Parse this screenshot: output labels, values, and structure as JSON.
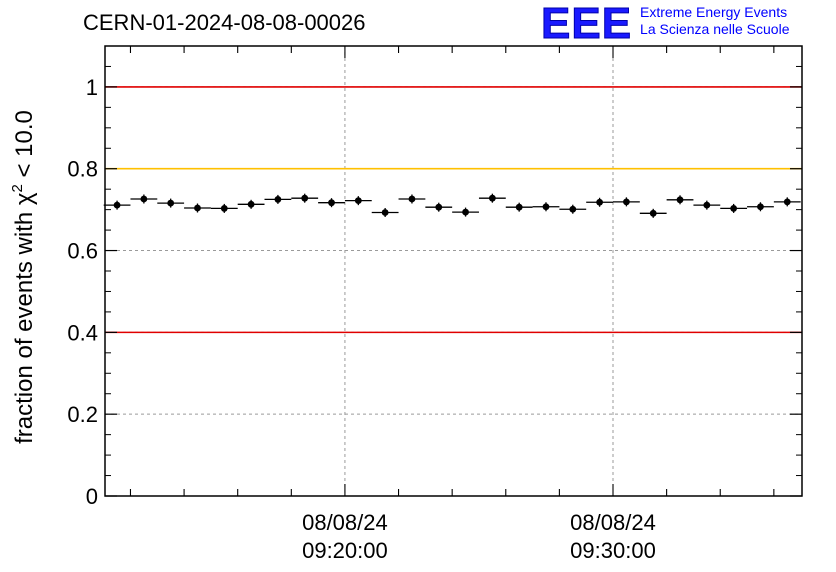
{
  "header": {
    "title": "CERN-01-2024-08-08-00026",
    "logo": {
      "mark": "EEE",
      "line1": "Extreme Energy Events",
      "line2": "La Scienza nelle Scuole",
      "color": "#0000ff"
    }
  },
  "chart_data": {
    "type": "scatter",
    "title": "CERN-01-2024-08-08-00026",
    "ylabel": "fraction of events with χ² < 10.0",
    "ylabel_parts": {
      "prefix": "fraction of events with ",
      "symbol": "χ",
      "sup": "2",
      "suffix": " < 10.0"
    },
    "xlabel": "",
    "x_unit": "minutes after 08/08/24 09:00:00",
    "xlim": [
      11.05,
      37.05
    ],
    "ylim": [
      0,
      1.1
    ],
    "yticks": [
      0,
      0.2,
      0.4,
      0.6,
      0.8,
      1
    ],
    "ytick_labels": [
      "0",
      "0.2",
      "0.4",
      "0.6",
      "0.8",
      "1"
    ],
    "xticks_major": [
      20,
      30
    ],
    "xtick_labels": [
      [
        "08/08/24",
        "09:20:00"
      ],
      [
        "08/08/24",
        "09:30:00"
      ]
    ],
    "grid": true,
    "reference_lines": [
      {
        "y": 1.0,
        "color": "#e00000"
      },
      {
        "y": 0.8,
        "color": "#ffc000"
      },
      {
        "y": 0.4,
        "color": "#e00000"
      }
    ],
    "series": [
      {
        "x": [
          11.5,
          12.5,
          13.5,
          14.5,
          15.5,
          16.5,
          17.5,
          18.5,
          19.5,
          20.5,
          21.5,
          22.5,
          23.5,
          24.5,
          25.5,
          26.5,
          27.5,
          28.5,
          29.5,
          30.5,
          31.5,
          32.5,
          33.5,
          34.5,
          35.5,
          36.5
        ],
        "values": [
          0.711,
          0.726,
          0.716,
          0.704,
          0.703,
          0.713,
          0.725,
          0.728,
          0.717,
          0.722,
          0.693,
          0.726,
          0.706,
          0.694,
          0.728,
          0.706,
          0.707,
          0.701,
          0.718,
          0.719,
          0.691,
          0.724,
          0.711,
          0.703,
          0.707,
          0.719
        ],
        "x_halfwidth": 0.5,
        "color": "#000000"
      }
    ]
  }
}
